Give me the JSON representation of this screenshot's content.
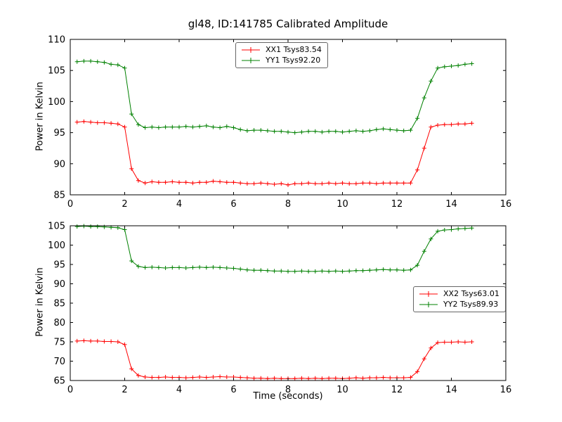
{
  "figure": {
    "title": "gl48, ID:141785 Calibrated Amplitude",
    "background": "#ffffff",
    "axis_color": "#000000"
  },
  "chart_data": [
    {
      "type": "line",
      "title": "",
      "xlabel": "",
      "ylabel": "Power in Kelvin",
      "xlim": [
        0,
        16
      ],
      "ylim": [
        85,
        110
      ],
      "xticks": [
        0,
        2,
        4,
        6,
        8,
        10,
        12,
        14,
        16
      ],
      "yticks": [
        85,
        90,
        95,
        100,
        105,
        110
      ],
      "grid": false,
      "legend_position": "upper center",
      "x": [
        0.25,
        0.5,
        0.75,
        1.0,
        1.25,
        1.5,
        1.75,
        2.0,
        2.25,
        2.5,
        2.75,
        3.0,
        3.25,
        3.5,
        3.75,
        4.0,
        4.25,
        4.5,
        4.75,
        5.0,
        5.25,
        5.5,
        5.75,
        6.0,
        6.25,
        6.5,
        6.75,
        7.0,
        7.25,
        7.5,
        7.75,
        8.0,
        8.25,
        8.5,
        8.75,
        9.0,
        9.25,
        9.5,
        9.75,
        10.0,
        10.25,
        10.5,
        10.75,
        11.0,
        11.25,
        11.5,
        11.75,
        12.0,
        12.25,
        12.5,
        12.75,
        13.0,
        13.25,
        13.5,
        13.75,
        14.0,
        14.25,
        14.5,
        14.75
      ],
      "series": [
        {
          "name": "XX1 Tsys83.54",
          "color": "#ff0000",
          "marker": "+",
          "values": [
            96.7,
            96.8,
            96.7,
            96.6,
            96.6,
            96.5,
            96.4,
            95.9,
            89.2,
            87.3,
            86.9,
            87.1,
            87.0,
            87.0,
            87.1,
            87.0,
            87.0,
            86.9,
            87.0,
            87.0,
            87.2,
            87.1,
            87.0,
            87.0,
            86.9,
            86.8,
            86.8,
            86.9,
            86.8,
            86.7,
            86.8,
            86.6,
            86.8,
            86.8,
            86.9,
            86.8,
            86.8,
            86.9,
            86.8,
            86.9,
            86.8,
            86.8,
            86.9,
            86.9,
            86.8,
            86.9,
            86.9,
            86.9,
            86.9,
            86.9,
            89.0,
            92.5,
            95.9,
            96.2,
            96.3,
            96.3,
            96.4,
            96.4,
            96.5
          ]
        },
        {
          "name": "YY1 Tsys92.20",
          "color": "#008000",
          "marker": "+",
          "values": [
            106.4,
            106.5,
            106.5,
            106.4,
            106.3,
            106.0,
            105.9,
            105.4,
            98.0,
            96.3,
            95.8,
            95.9,
            95.8,
            95.9,
            95.9,
            95.9,
            96.0,
            95.9,
            96.0,
            96.1,
            95.9,
            95.8,
            96.0,
            95.8,
            95.5,
            95.3,
            95.4,
            95.4,
            95.3,
            95.2,
            95.2,
            95.1,
            95.0,
            95.1,
            95.2,
            95.2,
            95.1,
            95.2,
            95.2,
            95.1,
            95.2,
            95.3,
            95.2,
            95.3,
            95.5,
            95.6,
            95.5,
            95.4,
            95.3,
            95.4,
            97.3,
            100.6,
            103.3,
            105.4,
            105.6,
            105.7,
            105.8,
            106.0,
            106.1
          ]
        }
      ]
    },
    {
      "type": "line",
      "title": "",
      "xlabel": "Time (seconds)",
      "ylabel": "Power in Kelvin",
      "xlim": [
        0,
        16
      ],
      "ylim": [
        65,
        105
      ],
      "xticks": [
        0,
        2,
        4,
        6,
        8,
        10,
        12,
        14,
        16
      ],
      "yticks": [
        65,
        70,
        75,
        80,
        85,
        90,
        95,
        100,
        105
      ],
      "grid": false,
      "legend_position": "center right",
      "x": [
        0.25,
        0.5,
        0.75,
        1.0,
        1.25,
        1.5,
        1.75,
        2.0,
        2.25,
        2.5,
        2.75,
        3.0,
        3.25,
        3.5,
        3.75,
        4.0,
        4.25,
        4.5,
        4.75,
        5.0,
        5.25,
        5.5,
        5.75,
        6.0,
        6.25,
        6.5,
        6.75,
        7.0,
        7.25,
        7.5,
        7.75,
        8.0,
        8.25,
        8.5,
        8.75,
        9.0,
        9.25,
        9.5,
        9.75,
        10.0,
        10.25,
        10.5,
        10.75,
        11.0,
        11.25,
        11.5,
        11.75,
        12.0,
        12.25,
        12.5,
        12.75,
        13.0,
        13.25,
        13.5,
        13.75,
        14.0,
        14.25,
        14.5,
        14.75
      ],
      "series": [
        {
          "name": "XX2 Tsys63.01",
          "color": "#ff0000",
          "marker": "+",
          "values": [
            75.2,
            75.3,
            75.2,
            75.2,
            75.1,
            75.1,
            75.0,
            74.3,
            68.0,
            66.3,
            65.9,
            65.8,
            65.8,
            65.9,
            65.8,
            65.8,
            65.7,
            65.8,
            65.9,
            65.8,
            65.9,
            66.0,
            65.9,
            65.9,
            65.8,
            65.7,
            65.6,
            65.6,
            65.5,
            65.6,
            65.5,
            65.5,
            65.5,
            65.6,
            65.5,
            65.6,
            65.5,
            65.6,
            65.6,
            65.5,
            65.6,
            65.7,
            65.6,
            65.7,
            65.7,
            65.8,
            65.7,
            65.7,
            65.7,
            65.8,
            67.3,
            70.6,
            73.4,
            74.8,
            74.9,
            74.9,
            75.0,
            74.9,
            75.0
          ]
        },
        {
          "name": "YY2 Tsys89.93",
          "color": "#008000",
          "marker": "+",
          "values": [
            104.8,
            104.9,
            104.8,
            104.8,
            104.7,
            104.6,
            104.5,
            104.0,
            95.9,
            94.5,
            94.2,
            94.3,
            94.2,
            94.1,
            94.2,
            94.2,
            94.1,
            94.2,
            94.3,
            94.2,
            94.3,
            94.2,
            94.1,
            94.0,
            93.8,
            93.6,
            93.5,
            93.5,
            93.4,
            93.3,
            93.3,
            93.2,
            93.2,
            93.3,
            93.2,
            93.2,
            93.3,
            93.2,
            93.3,
            93.2,
            93.3,
            93.4,
            93.4,
            93.5,
            93.6,
            93.7,
            93.6,
            93.6,
            93.5,
            93.6,
            94.8,
            98.4,
            101.6,
            103.6,
            103.9,
            104.0,
            104.2,
            104.3,
            104.4
          ]
        }
      ]
    }
  ]
}
